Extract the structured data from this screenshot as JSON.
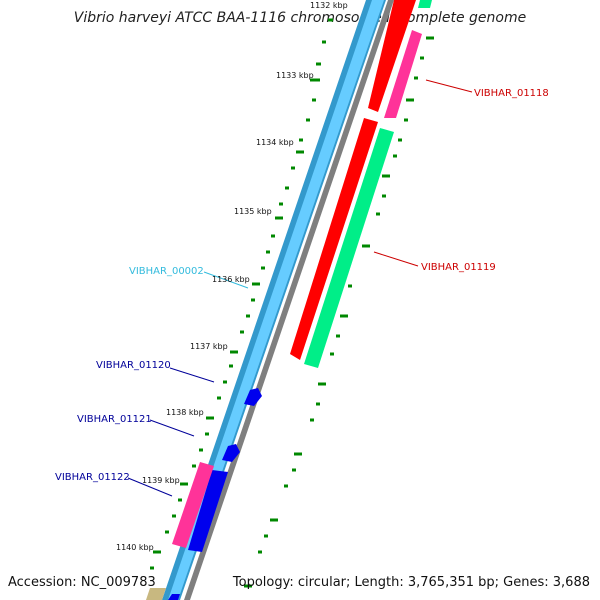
{
  "title": "Vibrio harveyi ATCC BAA-1116 chromosome I, complete genome",
  "footer": {
    "accession": "Accession: NC_009783",
    "topology": "Topology: circular; Length: 3,765,351 bp; Genes: 3,688"
  },
  "colors": {
    "backbone": "#7f7f7f",
    "forward_track_outer": "#3399cc",
    "forward_track_inner": "#66ccff",
    "red_gene": "#ff0000",
    "pink_gene": "#ff3399",
    "green_gene": "#00ee88",
    "blue_gene": "#0000ee",
    "tan_gene": "#c8b880",
    "label_red": "#cc0000",
    "label_cyan": "#33bbdd",
    "label_blue": "#000099",
    "tick_green": "#008800"
  },
  "ruler_labels": [
    "1132 kbp",
    "1133 kbp",
    "1134 kbp",
    "1135 kbp",
    "1136 kbp",
    "1137 kbp",
    "1138 kbp",
    "1139 kbp",
    "1140 kbp"
  ],
  "gene_labels": {
    "vibhar_01118": "VIBHAR_01118",
    "vibhar_01119": "VIBHAR_01119",
    "vibhar_00002": "VIBHAR_00002",
    "vibhar_01120": "VIBHAR_01120",
    "vibhar_01121": "VIBHAR_01121",
    "vibhar_01122": "VIBHAR_01122"
  }
}
